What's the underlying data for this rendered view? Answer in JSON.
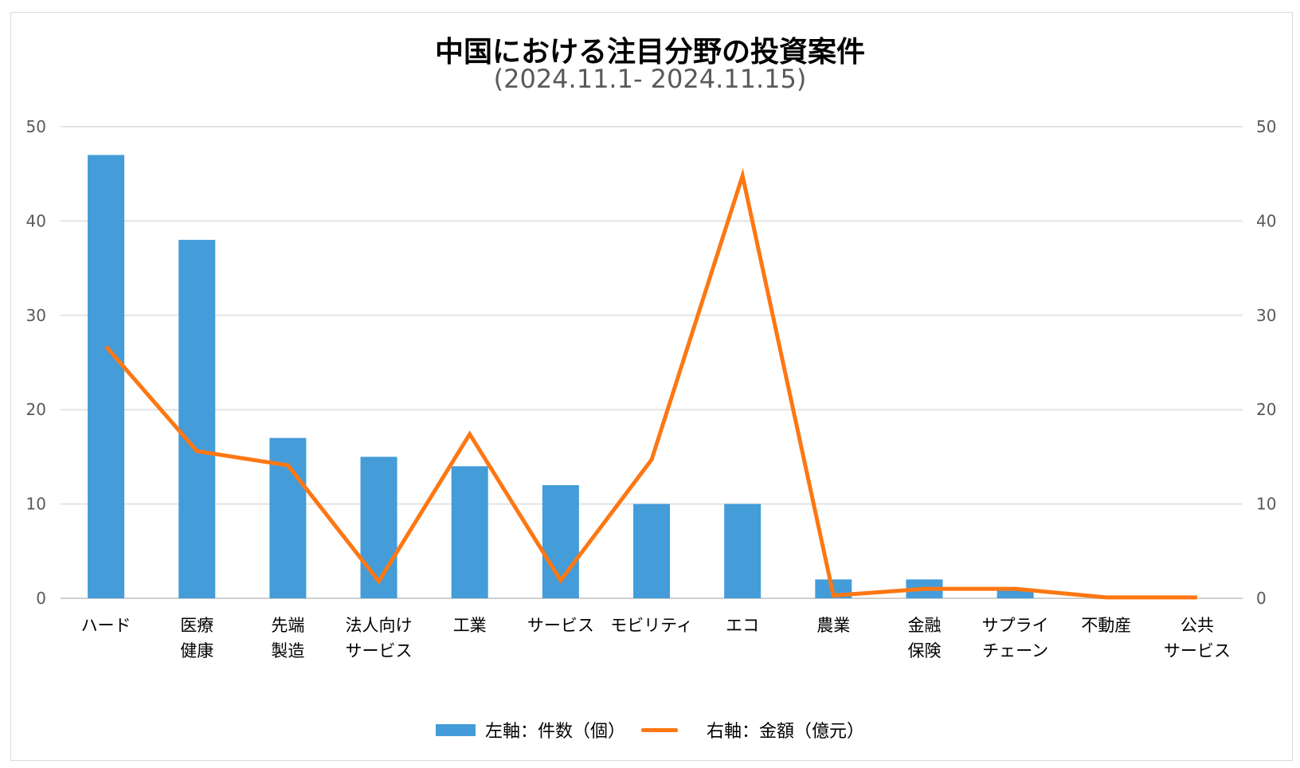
{
  "chart_data": {
    "type": "bar+line",
    "title": "中国における注目分野の投資案件",
    "subtitle": "(2024.11.1- 2024.11.15)",
    "categories": [
      [
        "ハード"
      ],
      [
        "医療",
        "健康"
      ],
      [
        "先端",
        "製造"
      ],
      [
        "法人向け",
        "サービス"
      ],
      [
        "工業"
      ],
      [
        "サービス"
      ],
      [
        "モビリティ"
      ],
      [
        "エコ"
      ],
      [
        "農業"
      ],
      [
        "金融",
        "保険"
      ],
      [
        "サプライ",
        "チェーン"
      ],
      [
        "不動産"
      ],
      [
        "公共",
        "サービス"
      ]
    ],
    "series": [
      {
        "name": "左軸：件数（個）",
        "type": "bar",
        "axis": "left",
        "color": "#449cd9",
        "values": [
          47,
          38,
          17,
          15,
          14,
          12,
          10,
          10,
          2,
          2,
          1,
          0,
          0
        ]
      },
      {
        "name": "右軸：金額（億元）",
        "type": "line",
        "axis": "right",
        "color": "#fd7713",
        "values": [
          26.7,
          15.6,
          14.1,
          1.8,
          17.4,
          1.9,
          14.7,
          44.8,
          0.3,
          1.0,
          1.0,
          0.1,
          0.1
        ]
      }
    ],
    "ylim_left": [
      0,
      50
    ],
    "ylim_right": [
      0,
      50
    ],
    "yticks": [
      "0",
      "10",
      "20",
      "30",
      "40",
      "50"
    ],
    "grid": true,
    "legend_position": "bottom"
  }
}
